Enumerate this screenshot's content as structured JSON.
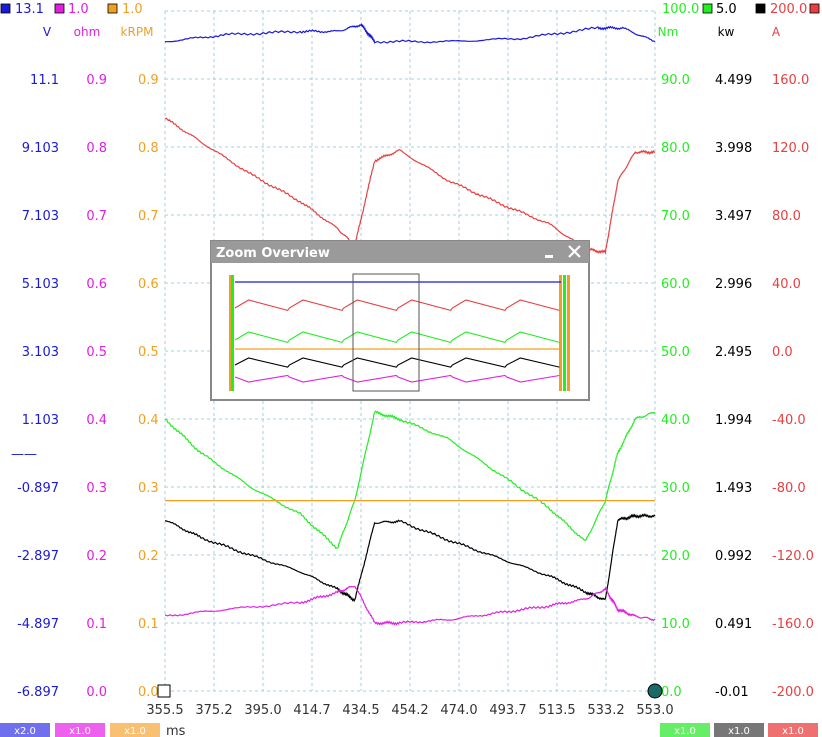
{
  "chart_data": {
    "type": "line",
    "x_unit": "ms",
    "x_ticks": [
      "355.5",
      "375.2",
      "395.0",
      "414.7",
      "434.5",
      "454.2",
      "474.0",
      "493.7",
      "513.5",
      "533.2",
      "553.0"
    ],
    "xlim": [
      355.5,
      553.0
    ],
    "grid": true,
    "axes": [
      {
        "id": "V",
        "color": "#1a1ad6",
        "top": "13.1",
        "unit": "V",
        "side": "left",
        "ticks": [
          "11.1",
          "9.103",
          "7.103",
          "5.103",
          "3.103",
          "1.103",
          "-0.897",
          "-2.897",
          "-4.897",
          "-6.897"
        ],
        "ylim": [
          -6.897,
          13.1
        ]
      },
      {
        "id": "ohm",
        "color": "#e020e0",
        "top": "1.0",
        "unit": "ohm",
        "side": "left",
        "ticks": [
          "0.9",
          "0.8",
          "0.7",
          "0.6",
          "0.5",
          "0.4",
          "0.3",
          "0.2",
          "0.1",
          "0.0"
        ],
        "ylim": [
          0,
          1.0
        ]
      },
      {
        "id": "kRPM",
        "color": "#f0a020",
        "top": "1.0",
        "unit": "kRPM",
        "side": "left",
        "ticks": [
          "0.9",
          "0.8",
          "0.7",
          "0.6",
          "0.5",
          "0.4",
          "0.3",
          "0.2",
          "0.1",
          "0.0"
        ],
        "ylim": [
          0,
          1.0
        ]
      },
      {
        "id": "Nm",
        "color": "#22ee22",
        "top": "100.0",
        "unit": "Nm",
        "side": "right",
        "ticks": [
          "90.0",
          "80.0",
          "70.0",
          "60.0",
          "50.0",
          "40.0",
          "30.0",
          "20.0",
          "10.0",
          "0.0"
        ],
        "ylim": [
          0,
          100
        ]
      },
      {
        "id": "kw",
        "color": "#000000",
        "top": "5.0",
        "unit": "kw",
        "side": "right",
        "ticks": [
          "4.499",
          "3.998",
          "3.497",
          "2.996",
          "2.495",
          "1.994",
          "1.493",
          "0.992",
          "0.491",
          "-0.01"
        ],
        "ylim": [
          -0.01,
          5.0
        ]
      },
      {
        "id": "A",
        "color": "#e84040",
        "top": "200.0",
        "unit": "A",
        "side": "right",
        "ticks": [
          "160.0",
          "120.0",
          "80.0",
          "40.0",
          "0.0",
          "-40.0",
          "-80.0",
          "-120.0",
          "-160.0",
          "-200.0"
        ],
        "ylim": [
          -200,
          200
        ]
      }
    ],
    "series": [
      {
        "axis": "V",
        "color": "#1a1ad6",
        "x": [
          355.5,
          380,
          410,
          425,
          434.5,
          440,
          470,
          500,
          530,
          540,
          553
        ],
        "y": [
          12.2,
          12.4,
          12.5,
          12.5,
          12.7,
          12.2,
          12.2,
          12.3,
          12.6,
          12.6,
          12.2
        ]
      },
      {
        "axis": "A",
        "color": "#e84040",
        "x": [
          355.5,
          370,
          390,
          410,
          425,
          432,
          440,
          450,
          470,
          490,
          510,
          525,
          533,
          538,
          545,
          553
        ],
        "y": [
          137,
          123,
          104,
          88,
          72,
          62,
          112,
          118,
          100,
          87,
          75,
          60,
          58,
          100,
          117,
          117
        ]
      },
      {
        "axis": "Nm",
        "color": "#22ee22",
        "x": [
          355.5,
          370,
          390,
          410,
          425,
          432,
          440,
          450,
          470,
          490,
          510,
          525,
          533,
          538,
          545,
          553
        ],
        "y": [
          40,
          35,
          30,
          26,
          21,
          28,
          41,
          40,
          37,
          32,
          27,
          22,
          28,
          35,
          40,
          41
        ]
      },
      {
        "axis": "kw",
        "color": "#000000",
        "x": [
          355.5,
          370,
          390,
          410,
          425,
          432,
          440,
          450,
          470,
          490,
          510,
          525,
          533,
          538,
          545,
          553
        ],
        "y": [
          1.25,
          1.12,
          0.99,
          0.87,
          0.74,
          0.66,
          1.23,
          1.24,
          1.1,
          0.97,
          0.84,
          0.72,
          0.66,
          1.25,
          1.28,
          1.28
        ]
      },
      {
        "axis": "ohm",
        "color": "#e020e0",
        "x": [
          355.5,
          380,
          410,
          425,
          432,
          440,
          450,
          470,
          490,
          510,
          525,
          533,
          538,
          545,
          553
        ],
        "y": [
          0.11,
          0.12,
          0.13,
          0.145,
          0.155,
          0.1,
          0.1,
          0.105,
          0.115,
          0.125,
          0.135,
          0.15,
          0.12,
          0.11,
          0.105
        ]
      },
      {
        "axis": "kRPM",
        "color": "#f0a020",
        "x": [
          355.5,
          553
        ],
        "y": [
          0.28,
          0.28
        ]
      }
    ],
    "legend_marker": "——"
  },
  "zoom_overview": {
    "title": "Zoom Overview",
    "minimize_icon": "minimize-icon",
    "close_icon": "close-icon"
  },
  "bottom_bar": {
    "left": [
      {
        "label": "x2.0",
        "color": "#7070ee"
      },
      {
        "label": "x1.0",
        "color": "#ee60ee"
      },
      {
        "label": "x1.0",
        "color": "#f8c070"
      }
    ],
    "right": [
      {
        "label": "x1.0",
        "color": "#66ee66"
      },
      {
        "label": "x1.0",
        "color": "#777777"
      },
      {
        "label": "x1.0",
        "color": "#ee7070"
      }
    ],
    "unit": "ms"
  }
}
